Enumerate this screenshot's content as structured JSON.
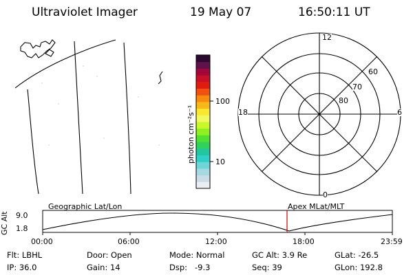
{
  "header": {
    "title": "Ultraviolet Imager",
    "date": "19 May 07",
    "time": "16:50:11 UT"
  },
  "colorbar": {
    "unit_label": "photon cm⁻²s⁻¹",
    "tick_100": "100",
    "tick_10": "10",
    "colors": [
      "#e8eef2",
      "#c8dde6",
      "#a6d8e0",
      "#6fd6d6",
      "#2ecfc6",
      "#22c7a0",
      "#2fd25a",
      "#4fe030",
      "#8ef020",
      "#c8f828",
      "#f2f860",
      "#f8e830",
      "#f8b818",
      "#f88a10",
      "#f05010",
      "#e01c10",
      "#c8102a",
      "#a0083c",
      "#60104a",
      "#2a0830"
    ]
  },
  "polar": {
    "labels": {
      "top": "12",
      "right": "6",
      "left": "18",
      "bottom": "0",
      "r60": "60",
      "r70": "70",
      "r80": "80"
    }
  },
  "timeline": {
    "ylabel": "GC Alt",
    "y_top": "9.0",
    "y_bottom": "1.8",
    "left_caption": "Geographic Lat/Lon",
    "right_caption": "Apex MLat/MLT",
    "ticks": [
      "00:00",
      "06:00",
      "12:00",
      "18:00",
      "23:59"
    ],
    "marker_color": "#cc0000"
  },
  "info": {
    "flt": "Flt: LBHL",
    "door": "Door: Open",
    "mode": "Mode: Normal",
    "gc_alt": "GC Alt: 3.9 Re",
    "glat": "GLat: -26.5",
    "ip": "IP: 36.0",
    "gain": "Gain: 14",
    "dsp": "Dsp:   -9.3",
    "seq": "Seq: 39",
    "glon": "GLon: 192.8"
  }
}
